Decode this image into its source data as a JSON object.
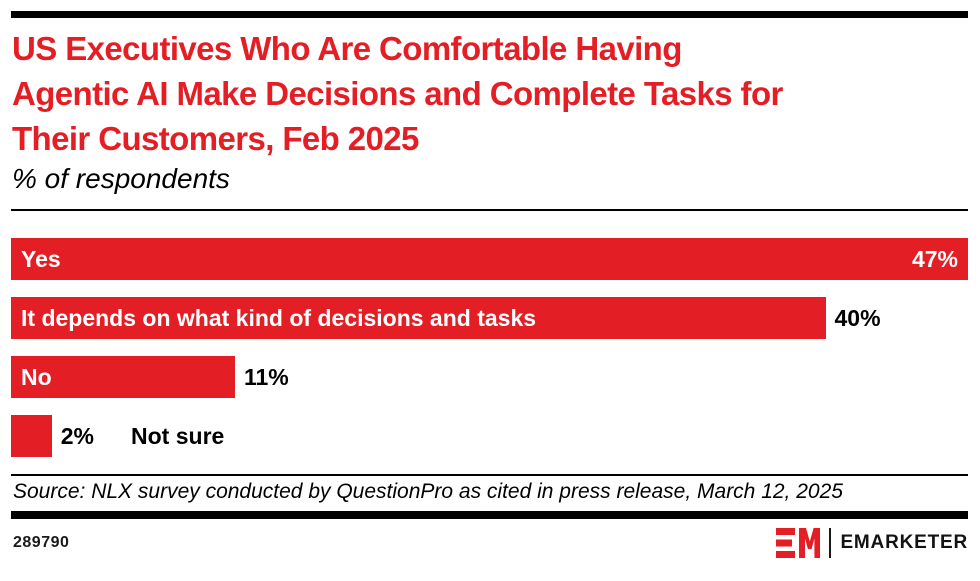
{
  "header": {
    "title_lines": [
      "US Executives Who Are Comfortable Having",
      "Agentic AI Make Decisions and Complete Tasks for",
      "Their Customers, Feb 2025"
    ],
    "subtitle": "% of respondents"
  },
  "chart_data": {
    "type": "bar",
    "orientation": "horizontal",
    "title": "US Executives Who Are Comfortable Having Agentic AI Make Decisions and Complete Tasks for Their Customers, Feb 2025",
    "subtitle": "% of respondents",
    "categories": [
      "Yes",
      "It depends on what kind of decisions and tasks",
      "No",
      "Not sure"
    ],
    "values": [
      47,
      40,
      11,
      2
    ],
    "value_labels": [
      "47%",
      "40%",
      "11%",
      "2%"
    ],
    "xlim": [
      0,
      47
    ],
    "grid": false,
    "legend": false,
    "bar_color": "#E31E25",
    "rows": [
      {
        "category": "Yes",
        "value": 47,
        "value_label": "47%",
        "category_inside": true,
        "value_inside": true
      },
      {
        "category": "It depends on what kind of decisions and tasks",
        "value": 40,
        "value_label": "40%",
        "category_inside": true,
        "value_inside": false
      },
      {
        "category": "No",
        "value": 11,
        "value_label": "11%",
        "category_inside": true,
        "value_inside": false
      },
      {
        "category": "Not sure",
        "value": 2,
        "value_label": "2%",
        "category_inside": false,
        "value_inside": false
      }
    ]
  },
  "footer": {
    "source": "Source: NLX survey conducted by QuestionPro as cited in press release, March 12, 2025",
    "chart_id": "289790"
  },
  "branding": {
    "wordmark": "EMARKETER",
    "logo_monogram": "EM"
  },
  "colors": {
    "accent_red": "#E31E25",
    "rule_black": "#000000",
    "bar_label_white": "#FFFFFF"
  }
}
